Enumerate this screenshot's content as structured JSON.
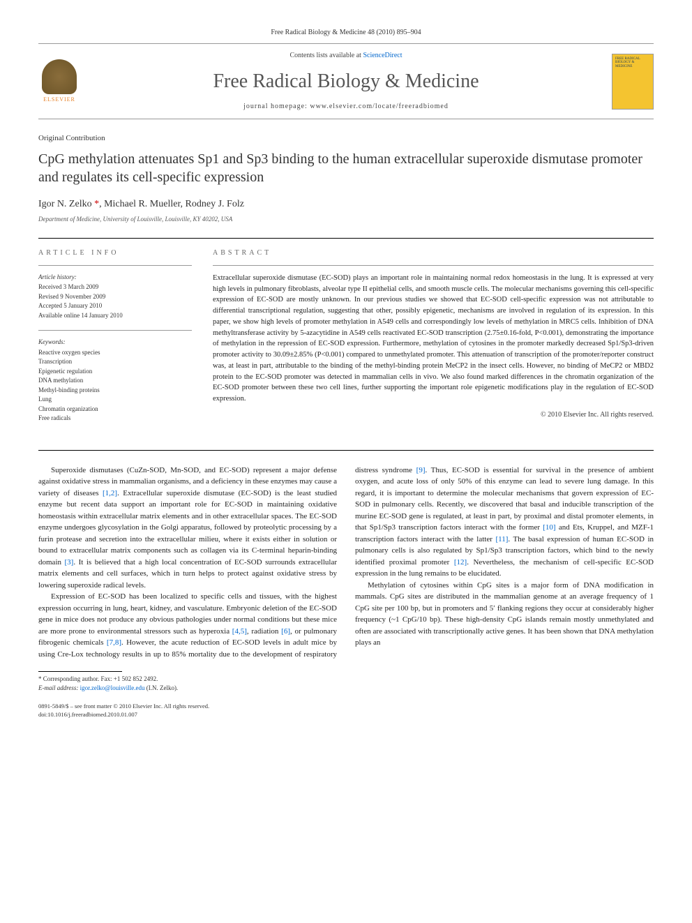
{
  "header": {
    "journal_ref": "Free Radical Biology & Medicine 48 (2010) 895–904",
    "contents_prefix": "Contents lists available at ",
    "contents_link": "ScienceDirect",
    "journal_name": "Free Radical Biology & Medicine",
    "homepage_prefix": "journal homepage: ",
    "homepage_url": "www.elsevier.com/locate/freeradbiomed",
    "elsevier_label": "ELSEVIER",
    "cover_text": "FREE RADICAL BIOLOGY & MEDICINE"
  },
  "article": {
    "contribution_type": "Original Contribution",
    "title": "CpG methylation attenuates Sp1 and Sp3 binding to the human extracellular superoxide dismutase promoter and regulates its cell-specific expression",
    "authors": "Igor N. Zelko ",
    "authors_rest": ", Michael R. Mueller, Rodney J. Folz",
    "affiliation": "Department of Medicine, University of Louisville, Louisville, KY 40202, USA"
  },
  "info": {
    "heading": "ARTICLE INFO",
    "history_label": "Article history:",
    "received": "Received 3 March 2009",
    "revised": "Revised 9 November 2009",
    "accepted": "Accepted 5 January 2010",
    "online": "Available online 14 January 2010",
    "keywords_label": "Keywords:",
    "keywords": [
      "Reactive oxygen species",
      "Transcription",
      "Epigenetic regulation",
      "DNA methylation",
      "Methyl-binding proteins",
      "Lung",
      "Chromatin organization",
      "Free radicals"
    ]
  },
  "abstract": {
    "heading": "ABSTRACT",
    "text": "Extracellular superoxide dismutase (EC-SOD) plays an important role in maintaining normal redox homeostasis in the lung. It is expressed at very high levels in pulmonary fibroblasts, alveolar type II epithelial cells, and smooth muscle cells. The molecular mechanisms governing this cell-specific expression of EC-SOD are mostly unknown. In our previous studies we showed that EC-SOD cell-specific expression was not attributable to differential transcriptional regulation, suggesting that other, possibly epigenetic, mechanisms are involved in regulation of its expression. In this paper, we show high levels of promoter methylation in A549 cells and correspondingly low levels of methylation in MRC5 cells. Inhibition of DNA methyltransferase activity by 5-azacytidine in A549 cells reactivated EC-SOD transcription (2.75±0.16-fold, P<0.001), demonstrating the importance of methylation in the repression of EC-SOD expression. Furthermore, methylation of cytosines in the promoter markedly decreased Sp1/Sp3-driven promoter activity to 30.09±2.85% (P<0.001) compared to unmethylated promoter. This attenuation of transcription of the promoter/reporter construct was, at least in part, attributable to the binding of the methyl-binding protein MeCP2 in the insect cells. However, no binding of MeCP2 or MBD2 protein to the EC-SOD promoter was detected in mammalian cells in vivo. We also found marked differences in the chromatin organization of the EC-SOD promoter between these two cell lines, further supporting the important role epigenetic modifications play in the regulation of EC-SOD expression.",
    "copyright": "© 2010 Elsevier Inc. All rights reserved."
  },
  "body": {
    "p1": "Superoxide dismutases (CuZn-SOD, Mn-SOD, and EC-SOD) represent a major defense against oxidative stress in mammalian organisms, and a deficiency in these enzymes may cause a variety of diseases [1,2]. Extracellular superoxide dismutase (EC-SOD) is the least studied enzyme but recent data support an important role for EC-SOD in maintaining oxidative homeostasis within extracellular matrix elements and in other extracellular spaces. The EC-SOD enzyme undergoes glycosylation in the Golgi apparatus, followed by proteolytic processing by a furin protease and secretion into the extracellular milieu, where it exists either in solution or bound to extracellular matrix components such as collagen via its C-terminal heparin-binding domain [3]. It is believed that a high local concentration of EC-SOD surrounds extracellular matrix elements and cell surfaces, which in turn helps to protect against oxidative stress by lowering superoxide radical levels.",
    "p2": "Expression of EC-SOD has been localized to specific cells and tissues, with the highest expression occurring in lung, heart, kidney, and vasculature. Embryonic deletion of the EC-SOD gene in mice does not produce any obvious pathologies under normal conditions but these mice are more prone to environmental stressors such as hyperoxia [4,5], radiation [6], or pulmonary fibrogenic chemicals [7,8]. However, the acute reduction of EC-SOD levels in adult mice by using Cre-Lox technology results in up to 85% mortality due to the development of respiratory distress syndrome [9]. Thus, EC-SOD is essential for survival in the presence of ambient oxygen, and acute loss of only 50% of this enzyme can lead to severe lung damage. In this regard, it is important to determine the molecular mechanisms that govern expression of EC-SOD in pulmonary cells. Recently, we discovered that basal and inducible transcription of the murine EC-SOD gene is regulated, at least in part, by proximal and distal promoter elements, in that Sp1/Sp3 transcription factors interact with the former [10] and Ets, Kruppel, and MZF-1 transcription factors interact with the latter [11]. The basal expression of human EC-SOD in pulmonary cells is also regulated by Sp1/Sp3 transcription factors, which bind to the newly identified proximal promoter [12]. Nevertheless, the mechanism of cell-specific EC-SOD expression in the lung remains to be elucidated.",
    "p3": "Methylation of cytosines within CpG sites is a major form of DNA modification in mammals. CpG sites are distributed in the mammalian genome at an average frequency of 1 CpG site per 100 bp, but in promoters and 5′ flanking regions they occur at considerably higher frequency (~1 CpG/10 bp). These high-density CpG islands remain mostly unmethylated and often are associated with transcriptionally active genes. It has been shown that DNA methylation plays an"
  },
  "footnote": {
    "corresp_label": "* Corresponding author. Fax: +1 502 852 2492.",
    "email_label": "E-mail address: ",
    "email": "igor.zelko@louisville.edu",
    "email_suffix": " (I.N. Zelko)."
  },
  "doi": {
    "line1": "0891-5849/$ – see front matter © 2010 Elsevier Inc. All rights reserved.",
    "line2": "doi:10.1016/j.freeradbiomed.2010.01.007"
  },
  "refs": {
    "r12": "[1,2]",
    "r3": "[3]",
    "r45": "[4,5]",
    "r6": "[6]",
    "r78": "[7,8]",
    "r9": "[9]",
    "r10": "[10]",
    "r11": "[11]",
    "r12b": "[12]"
  }
}
